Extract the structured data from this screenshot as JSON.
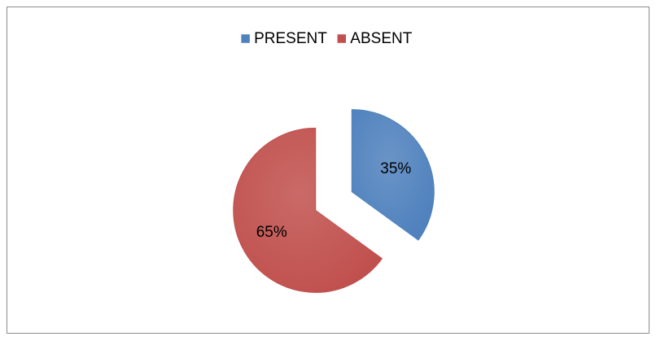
{
  "chart_data": {
    "type": "pie",
    "categories": [
      "PRESENT",
      "ABSENT"
    ],
    "values": [
      35,
      65
    ],
    "value_labels": [
      "35%",
      "65%"
    ],
    "colors": [
      "#4f81bd",
      "#c0504d"
    ],
    "legend": "top"
  }
}
